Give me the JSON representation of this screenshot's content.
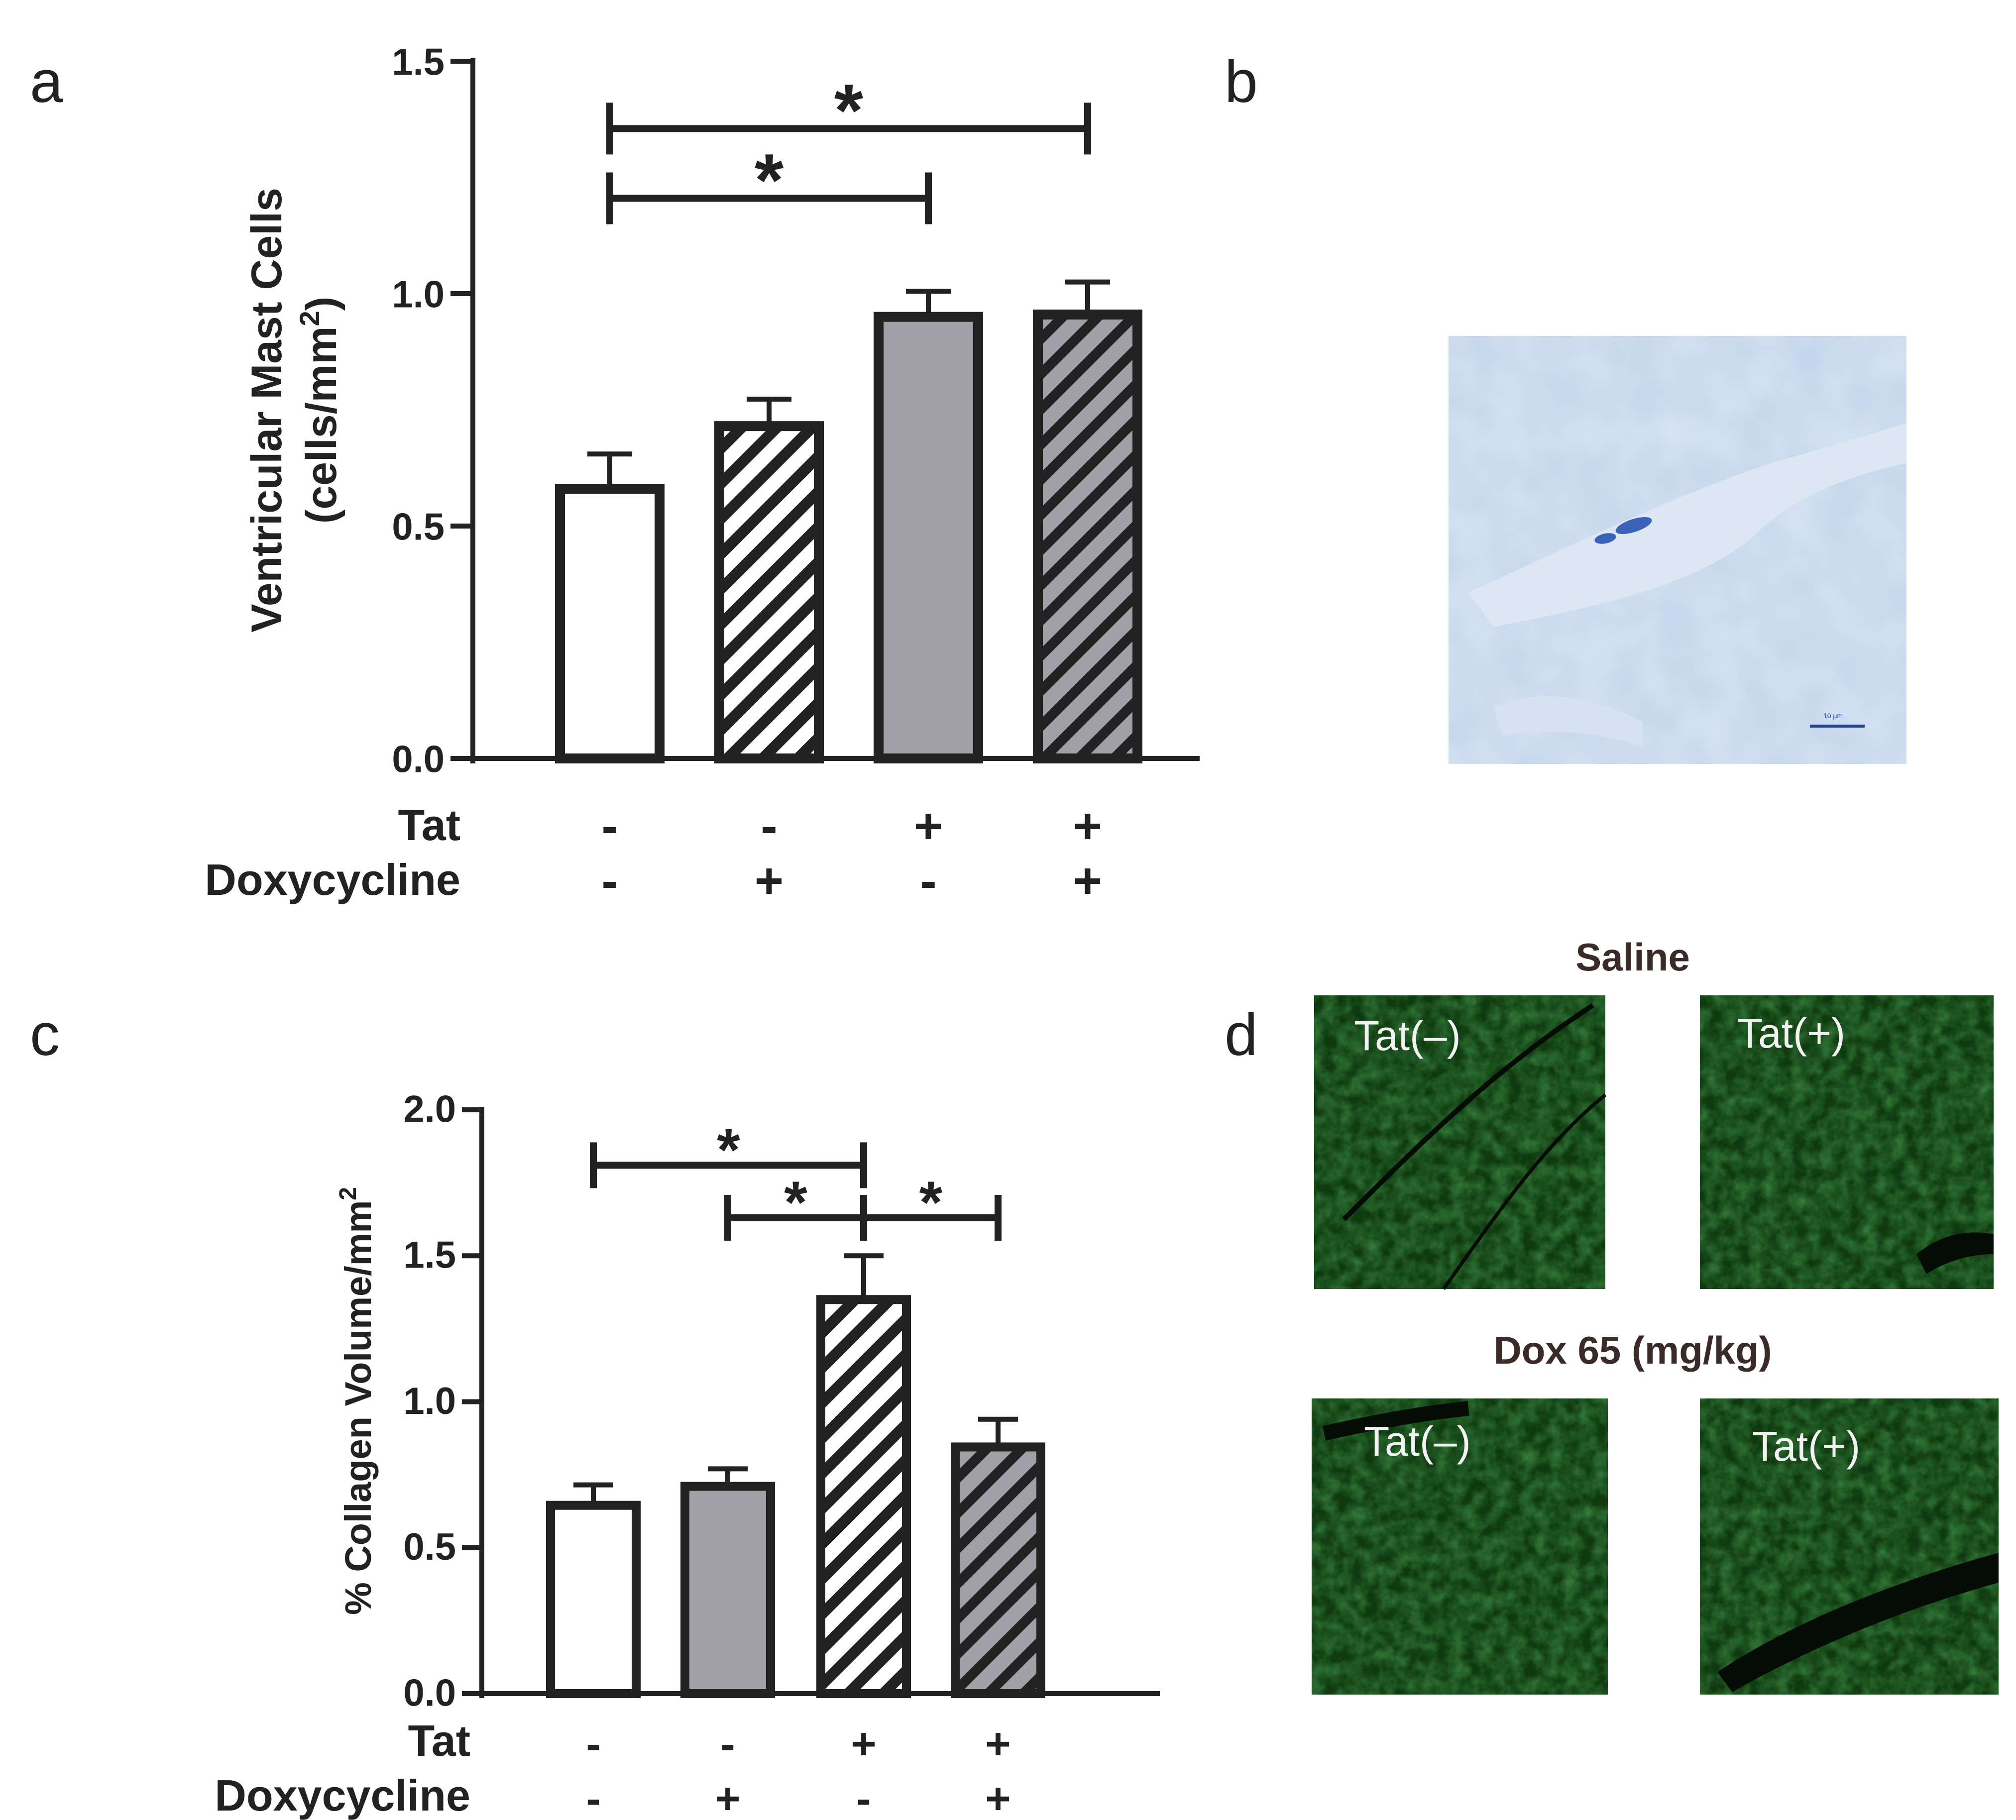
{
  "panels": {
    "a": "a",
    "b": "b",
    "c": "c",
    "d": "d"
  },
  "colors": {
    "open": "#ffffff",
    "gray": "#a0a0a6",
    "outline": "#222222",
    "histo_bg": "#c5d6ec",
    "fluor": "#0f3a10"
  },
  "chart_data": [
    {
      "panel": "a",
      "type": "bar",
      "ylabel": "Ventricular Mast Cells",
      "ylabel_line2_prefix": "(cells/mm",
      "ylabel_line2_sup": "2",
      "ylabel_line2_suffix": ")",
      "ylim": [
        0,
        1.5
      ],
      "yticks": [
        "0.0",
        "0.5",
        "1.0",
        "1.5"
      ],
      "ytick_values": [
        0,
        0.5,
        1.0,
        1.5
      ],
      "condition_rows": [
        {
          "label": "Tat",
          "signs": [
            "-",
            "-",
            "+",
            "+"
          ]
        },
        {
          "label": "Doxycycline",
          "signs": [
            "-",
            "+",
            "-",
            "+"
          ]
        }
      ],
      "bars": [
        {
          "value": 0.58,
          "error": 0.075,
          "fill": "open",
          "hatch": false
        },
        {
          "value": 0.715,
          "error": 0.058,
          "fill": "open",
          "hatch": true
        },
        {
          "value": 0.95,
          "error": 0.055,
          "fill": "gray",
          "hatch": false
        },
        {
          "value": 0.955,
          "error": 0.07,
          "fill": "gray",
          "hatch": true
        }
      ],
      "significance": [
        {
          "from": 0,
          "to": 3,
          "y": 1.355,
          "label": "*"
        },
        {
          "from": 0,
          "to": 2,
          "y": 1.205,
          "label": "*"
        }
      ]
    },
    {
      "panel": "c",
      "type": "bar",
      "ylabel_prefix": "% Collagen Volume/mm",
      "ylabel_sup": "2",
      "ylim": [
        0,
        2.0
      ],
      "yticks": [
        "0.0",
        "0.5",
        "1.0",
        "1.5",
        "2.0"
      ],
      "ytick_values": [
        0,
        0.5,
        1.0,
        1.5,
        2.0
      ],
      "condition_rows": [
        {
          "label": "Tat",
          "signs": [
            "-",
            "-",
            "+",
            "+"
          ]
        },
        {
          "label": "Doxycycline",
          "signs": [
            "-",
            "+",
            "-",
            "+"
          ]
        }
      ],
      "bars": [
        {
          "value": 0.645,
          "error": 0.07,
          "fill": "open",
          "hatch": false
        },
        {
          "value": 0.71,
          "error": 0.06,
          "fill": "gray",
          "hatch": false
        },
        {
          "value": 1.35,
          "error": 0.15,
          "fill": "open",
          "hatch": true
        },
        {
          "value": 0.845,
          "error": 0.095,
          "fill": "gray",
          "hatch": true
        }
      ],
      "significance": [
        {
          "from": 0,
          "to": 2,
          "y": 1.81,
          "label": "*"
        },
        {
          "from": 1,
          "to": 2,
          "y": 1.63,
          "label": "*"
        },
        {
          "from": 2,
          "to": 3,
          "y": 1.63,
          "label": "*"
        }
      ]
    }
  ],
  "micrograph_b": {
    "scale_label": "10 µm"
  },
  "micrographs_d": {
    "group_titles": [
      "Saline",
      "Dox 65 (mg/kg)"
    ],
    "labels": [
      "Tat(–)",
      "Tat(+)",
      "Tat(–)",
      "Tat(+)"
    ]
  }
}
